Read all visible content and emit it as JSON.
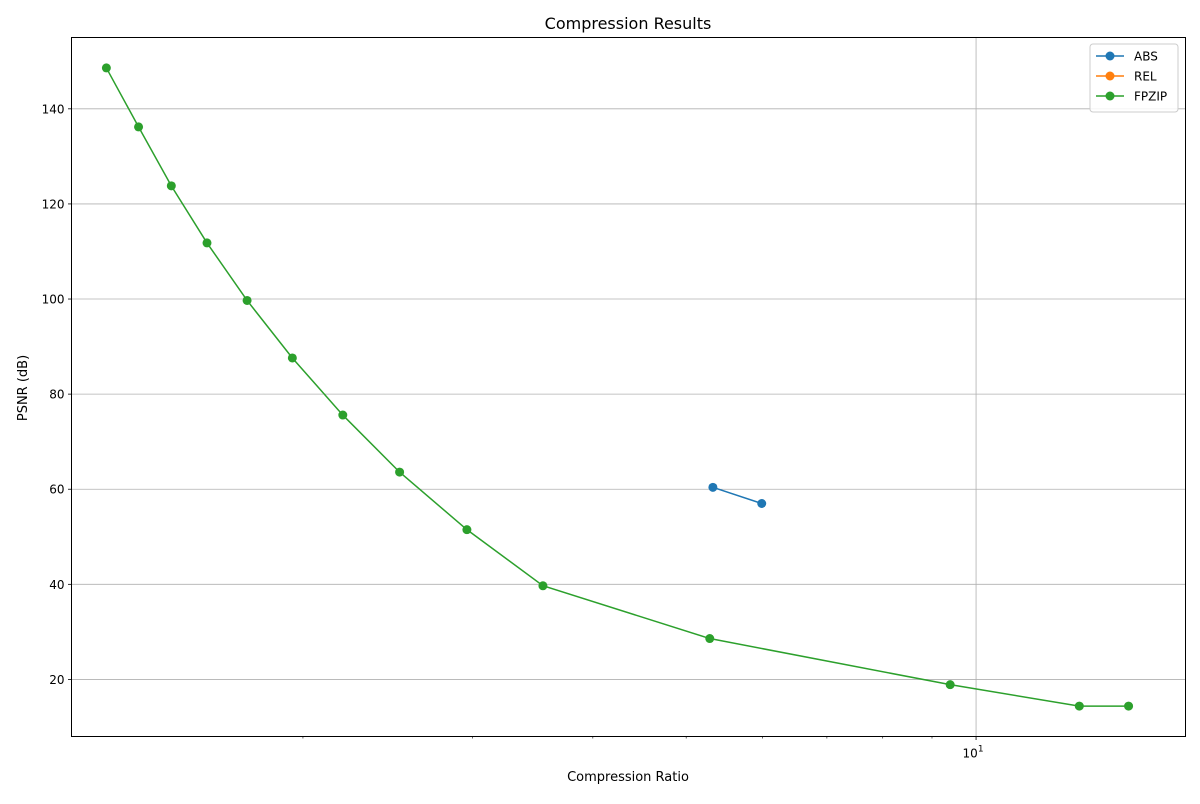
{
  "chart_data": {
    "type": "line",
    "title": "Compression Results",
    "xlabel": "Compression Ratio",
    "ylabel": "PSNR (dB)",
    "xscale": "log",
    "xlim": [
      1.15,
      16.5
    ],
    "ylim": [
      8,
      155
    ],
    "grid": true,
    "legend_position": "upper right",
    "x_major_ticks": [
      {
        "value": 10,
        "base": "10",
        "exponent": "1"
      }
    ],
    "x_minor_ticks": [
      2,
      3,
      4,
      5,
      6,
      7,
      8,
      9
    ],
    "y_ticks": [
      {
        "value": 20,
        "label": "20"
      },
      {
        "value": 40,
        "label": "40"
      },
      {
        "value": 60,
        "label": "60"
      },
      {
        "value": 80,
        "label": "80"
      },
      {
        "value": 100,
        "label": "100"
      },
      {
        "value": 120,
        "label": "120"
      },
      {
        "value": 140,
        "label": "140"
      }
    ],
    "series": [
      {
        "name": "ABS",
        "color": "#1f77b4",
        "marker": "circle",
        "x": [
          5.33,
          5.99
        ],
        "y": [
          60.4,
          57.0
        ]
      },
      {
        "name": "REL",
        "color": "#ff7f0e",
        "marker": "circle",
        "x": [],
        "y": []
      },
      {
        "name": "FPZIP",
        "color": "#2ca02c",
        "marker": "circle",
        "x": [
          1.25,
          1.35,
          1.46,
          1.59,
          1.75,
          1.95,
          2.2,
          2.52,
          2.96,
          3.55,
          5.29,
          9.4,
          12.8,
          14.4
        ],
        "y": [
          148.6,
          136.2,
          123.8,
          111.8,
          99.7,
          87.6,
          75.6,
          63.6,
          51.5,
          39.7,
          28.6,
          18.9,
          14.4,
          14.4
        ]
      }
    ]
  }
}
